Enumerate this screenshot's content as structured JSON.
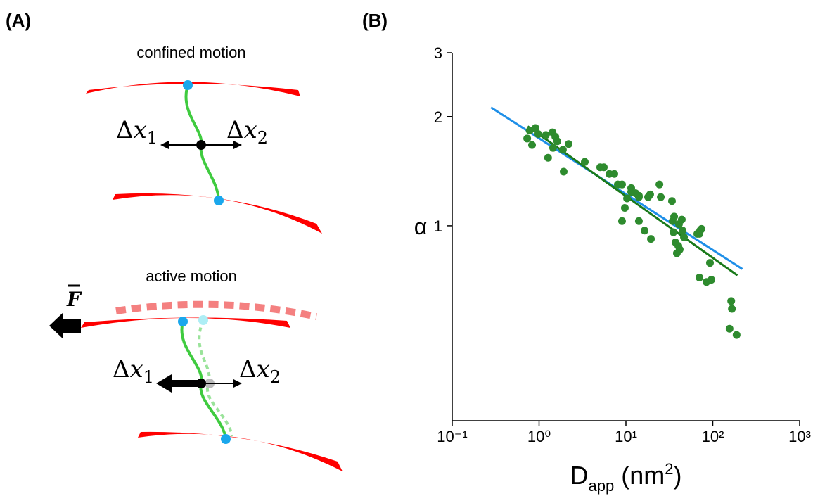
{
  "diagram": {
    "label": "(A)",
    "confined": {
      "title": "confined motion",
      "dx1": [
        "Δ",
        "x",
        "1"
      ],
      "dx2": [
        "Δ",
        "x",
        "2"
      ]
    },
    "active": {
      "title": "active motion",
      "force": "F",
      "dx1": [
        "Δ",
        "x",
        "1"
      ],
      "dx2": [
        "Δ",
        "x",
        "2"
      ]
    }
  },
  "chart_data": {
    "type": "scatter",
    "label": "(B)",
    "ylabel": "α",
    "xlabel": [
      "D",
      "app",
      "(nm",
      "2",
      ")"
    ],
    "log_x": true,
    "log_y": true,
    "xlim": [
      0.1,
      1000
    ],
    "ylim": [
      0.29,
      3
    ],
    "xticks": [
      {
        "value": 0.1,
        "label": "10⁻¹"
      },
      {
        "value": 1,
        "label": "10⁰"
      },
      {
        "value": 10,
        "label": "10¹"
      },
      {
        "value": 100,
        "label": "10²"
      },
      {
        "value": 1000,
        "label": "10³"
      }
    ],
    "yticks": [
      1,
      2,
      3
    ],
    "series": [
      {
        "color": "#2e8b2e",
        "x": [
          0.73,
          0.83,
          0.78,
          0.91,
          0.98,
          1.2,
          1.43,
          1.54,
          1.27,
          1.45,
          1.62,
          1.88,
          2.19,
          1.92,
          3.36,
          5.06,
          5.56,
          6.45,
          7.35,
          8.07,
          9.02,
          11.5,
          11.5,
          12.9,
          14.1,
          18.0,
          14.1,
          10.3,
          9.72,
          9.02,
          14.1,
          16.4,
          19.4,
          19.0,
          24.3,
          25.2,
          33.9,
          34.5,
          35.9,
          40.8,
          44.0,
          44.9,
          35.2,
          37.2,
          40.1,
          41.6,
          38.6,
          46.6,
          70.2,
          71.5,
          74.2,
          66.4,
          92.8,
          70.2,
          84.6,
          96.3,
          163,
          166,
          156,
          188
        ],
        "values": [
          1.74,
          1.67,
          1.83,
          1.86,
          1.79,
          1.78,
          1.81,
          1.76,
          1.54,
          1.64,
          1.71,
          1.62,
          1.68,
          1.41,
          1.5,
          1.45,
          1.45,
          1.39,
          1.39,
          1.3,
          1.3,
          1.27,
          1.24,
          1.23,
          1.2,
          1.2,
          1.21,
          1.19,
          1.12,
          1.03,
          1.03,
          0.97,
          0.92,
          1.22,
          1.3,
          1.2,
          1.17,
          1.03,
          1.06,
          1.01,
          1.04,
          0.97,
          0.96,
          0.9,
          0.88,
          0.86,
          0.84,
          0.93,
          0.95,
          0.97,
          0.98,
          0.95,
          0.79,
          0.72,
          0.7,
          0.71,
          0.62,
          0.59,
          0.52,
          0.5
        ]
      }
    ],
    "fits": [
      {
        "color": "#1e8fe8",
        "x": [
          0.28,
          219
        ],
        "values": [
          2.12,
          0.76
        ]
      },
      {
        "color": "#1a7a1a",
        "x": [
          0.74,
          192
        ],
        "values": [
          1.88,
          0.73
        ]
      }
    ]
  }
}
